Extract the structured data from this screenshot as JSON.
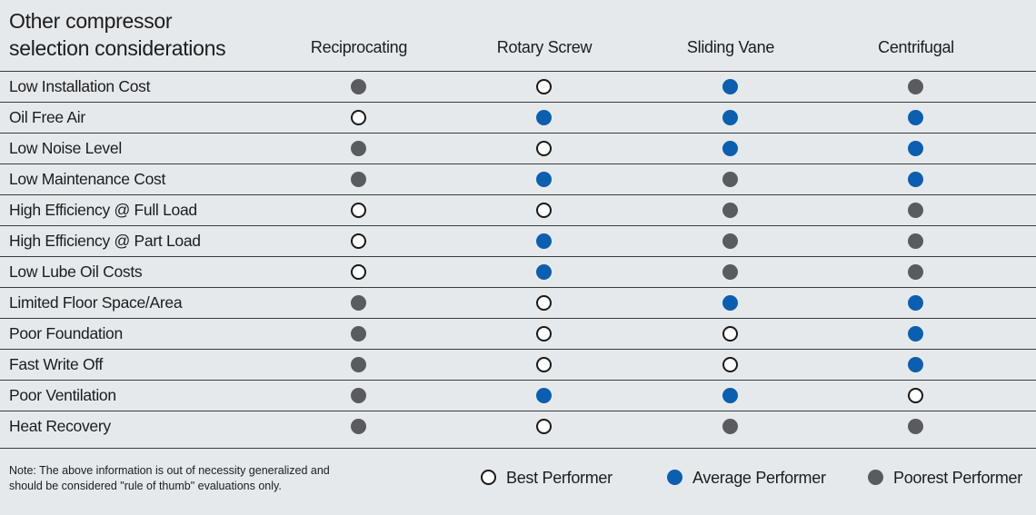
{
  "title_line1": "Other compressor",
  "title_line2": "selection considerations",
  "columns": [
    "Reciprocating",
    "Rotary Screw",
    "Sliding Vane",
    "Centrifugal"
  ],
  "rows": [
    {
      "label": "Low Installation Cost",
      "ratings": [
        "poor",
        "best",
        "average",
        "poor"
      ]
    },
    {
      "label": "Oil Free Air",
      "ratings": [
        "best",
        "average",
        "average",
        "average"
      ]
    },
    {
      "label": "Low Noise Level",
      "ratings": [
        "poor",
        "best",
        "average",
        "average"
      ]
    },
    {
      "label": "Low Maintenance Cost",
      "ratings": [
        "poor",
        "average",
        "poor",
        "average"
      ]
    },
    {
      "label": "High Efficiency @ Full Load",
      "ratings": [
        "best",
        "best",
        "poor",
        "poor"
      ]
    },
    {
      "label": "High Efficiency @ Part Load",
      "ratings": [
        "best",
        "average",
        "poor",
        "poor"
      ]
    },
    {
      "label": "Low Lube Oil Costs",
      "ratings": [
        "best",
        "average",
        "poor",
        "poor"
      ]
    },
    {
      "label": "Limited Floor Space/Area",
      "ratings": [
        "poor",
        "best",
        "average",
        "average"
      ]
    },
    {
      "label": "Poor Foundation",
      "ratings": [
        "poor",
        "best",
        "best",
        "average"
      ]
    },
    {
      "label": "Fast Write Off",
      "ratings": [
        "poor",
        "best",
        "best",
        "average"
      ]
    },
    {
      "label": "Poor Ventilation",
      "ratings": [
        "poor",
        "average",
        "average",
        "best"
      ]
    },
    {
      "label": "Heat Recovery",
      "ratings": [
        "poor",
        "best",
        "poor",
        "poor"
      ]
    }
  ],
  "note_line1": "Note: The above information is out of necessity generalized  and",
  "note_line2": "should be considered \"rule of thumb\" evaluations only.",
  "legend": {
    "best": "Best Performer",
    "average": "Average Performer",
    "poor": "Poorest Performer"
  },
  "colors": {
    "best": "#ffffff",
    "average": "#0a5fb0",
    "poor": "#595b5e",
    "background": "#e6e9ec"
  }
}
